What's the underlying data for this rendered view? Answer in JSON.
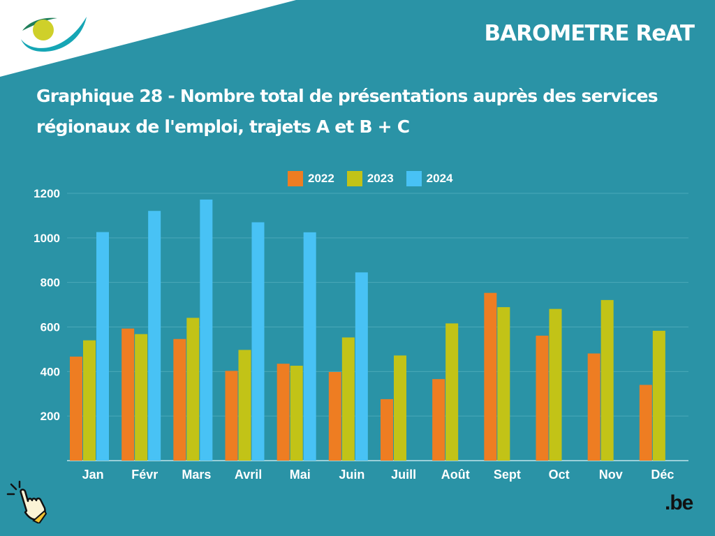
{
  "header": {
    "brand": "BAROMETRE ReAT",
    "logo_icon": "eye-logo-icon"
  },
  "title": "Graphique 28 - Nombre total de présentations auprès des services régionaux de l'emploi, trajets A et B + C",
  "footer": {
    "be_logo": ".be",
    "pointer_icon": "hand-pointer-icon"
  },
  "colors": {
    "background": "#2a93a6",
    "series_2022": "#ee7d22",
    "series_2023": "#c2c317",
    "series_2024": "#48c2f5"
  },
  "chart_data": {
    "type": "bar",
    "title": "Graphique 28 - Nombre total de présentations auprès des services régionaux de l'emploi, trajets A et B + C",
    "categories": [
      "Jan",
      "Févr",
      "Mars",
      "Avril",
      "Mai",
      "Juin",
      "Juill",
      "Août",
      "Sept",
      "Oct",
      "Nov",
      "Déc"
    ],
    "series": [
      {
        "name": "2022",
        "color": "#ee7d22",
        "values": [
          467,
          593,
          546,
          403,
          435,
          398,
          276,
          366,
          753,
          561,
          481,
          340
        ]
      },
      {
        "name": "2023",
        "color": "#c2c317",
        "values": [
          540,
          568,
          641,
          497,
          426,
          553,
          472,
          616,
          689,
          681,
          721,
          583
        ]
      },
      {
        "name": "2024",
        "color": "#48c2f5",
        "values": [
          1026,
          1121,
          1172,
          1070,
          1025,
          845,
          null,
          null,
          null,
          null,
          null,
          null
        ]
      }
    ],
    "yticks": [
      200,
      400,
      600,
      800,
      1000,
      1200
    ],
    "ylim": [
      0,
      1200
    ],
    "grid": true,
    "legend_position": "top"
  }
}
